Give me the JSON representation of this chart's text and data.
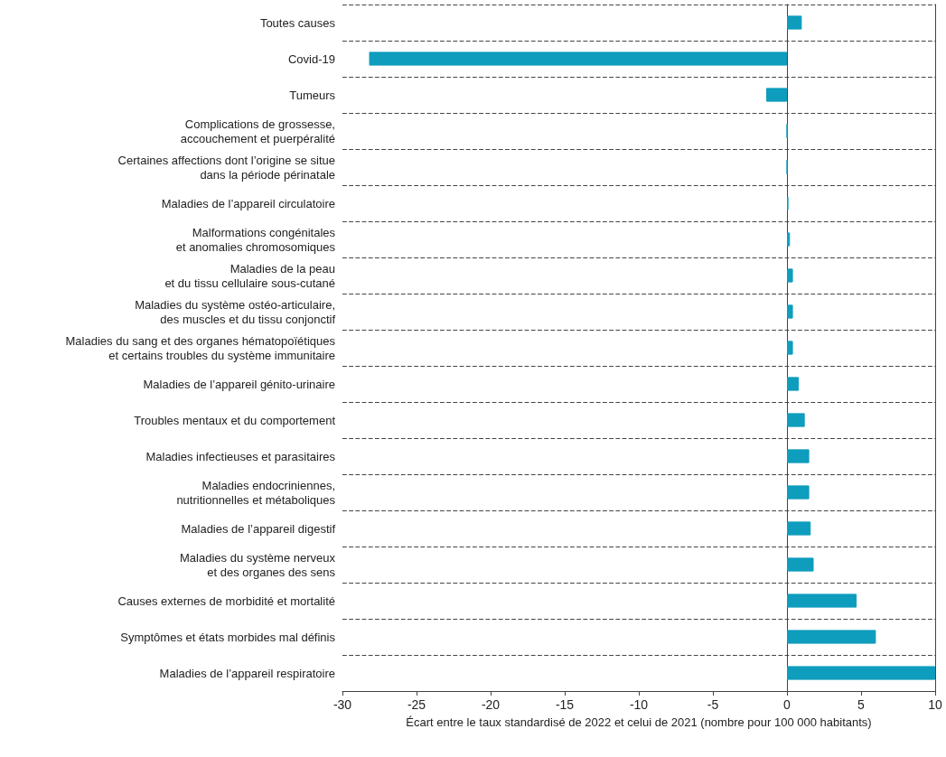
{
  "chart_data": {
    "type": "bar",
    "orientation": "horizontal",
    "xlabel": "Écart entre le taux standardisé de 2022 et celui de 2021 (nombre pour 100 000 habitants)",
    "categories": [
      "Toutes causes",
      "Covid-19",
      "Tumeurs",
      "Complications de grossesse,\naccouchement et puerpéralité",
      "Certaines affections dont l’origine se situe\ndans la période périnatale",
      "Maladies de l’appareil circulatoire",
      "Malformations congénitales\net anomalies chromosomiques",
      "Maladies de la peau\net du tissu cellulaire sous-cutané",
      "Maladies du système ostéo-articulaire,\ndes muscles et du tissu conjonctif",
      "Maladies du sang et des organes hématopoïétiques\net certains troubles du système immunitaire",
      "Maladies de l’appareil génito-urinaire",
      "Troubles mentaux et du comportement",
      "Maladies infectieuses et parasitaires",
      "Maladies endocriniennes,\nnutritionnelles et métaboliques",
      "Maladies de l’appareil digestif",
      "Maladies du système nerveux\net des organes des sens",
      "Causes externes de morbidité et mortalité",
      "Symptômes et états morbides mal définis",
      "Maladies de l’appareil respiratoire"
    ],
    "values": [
      1.0,
      -28.2,
      -1.4,
      0,
      0,
      0.1,
      0.2,
      0.4,
      0.4,
      0.4,
      0.8,
      1.2,
      1.5,
      1.5,
      1.6,
      1.8,
      4.7,
      6.0,
      10
    ],
    "color": "#0e9dbd",
    "xlim": [
      -30,
      10
    ],
    "xticks": [
      -30,
      -25,
      -20,
      -15,
      -10,
      -5,
      0,
      5,
      10
    ],
    "grid": "y"
  }
}
